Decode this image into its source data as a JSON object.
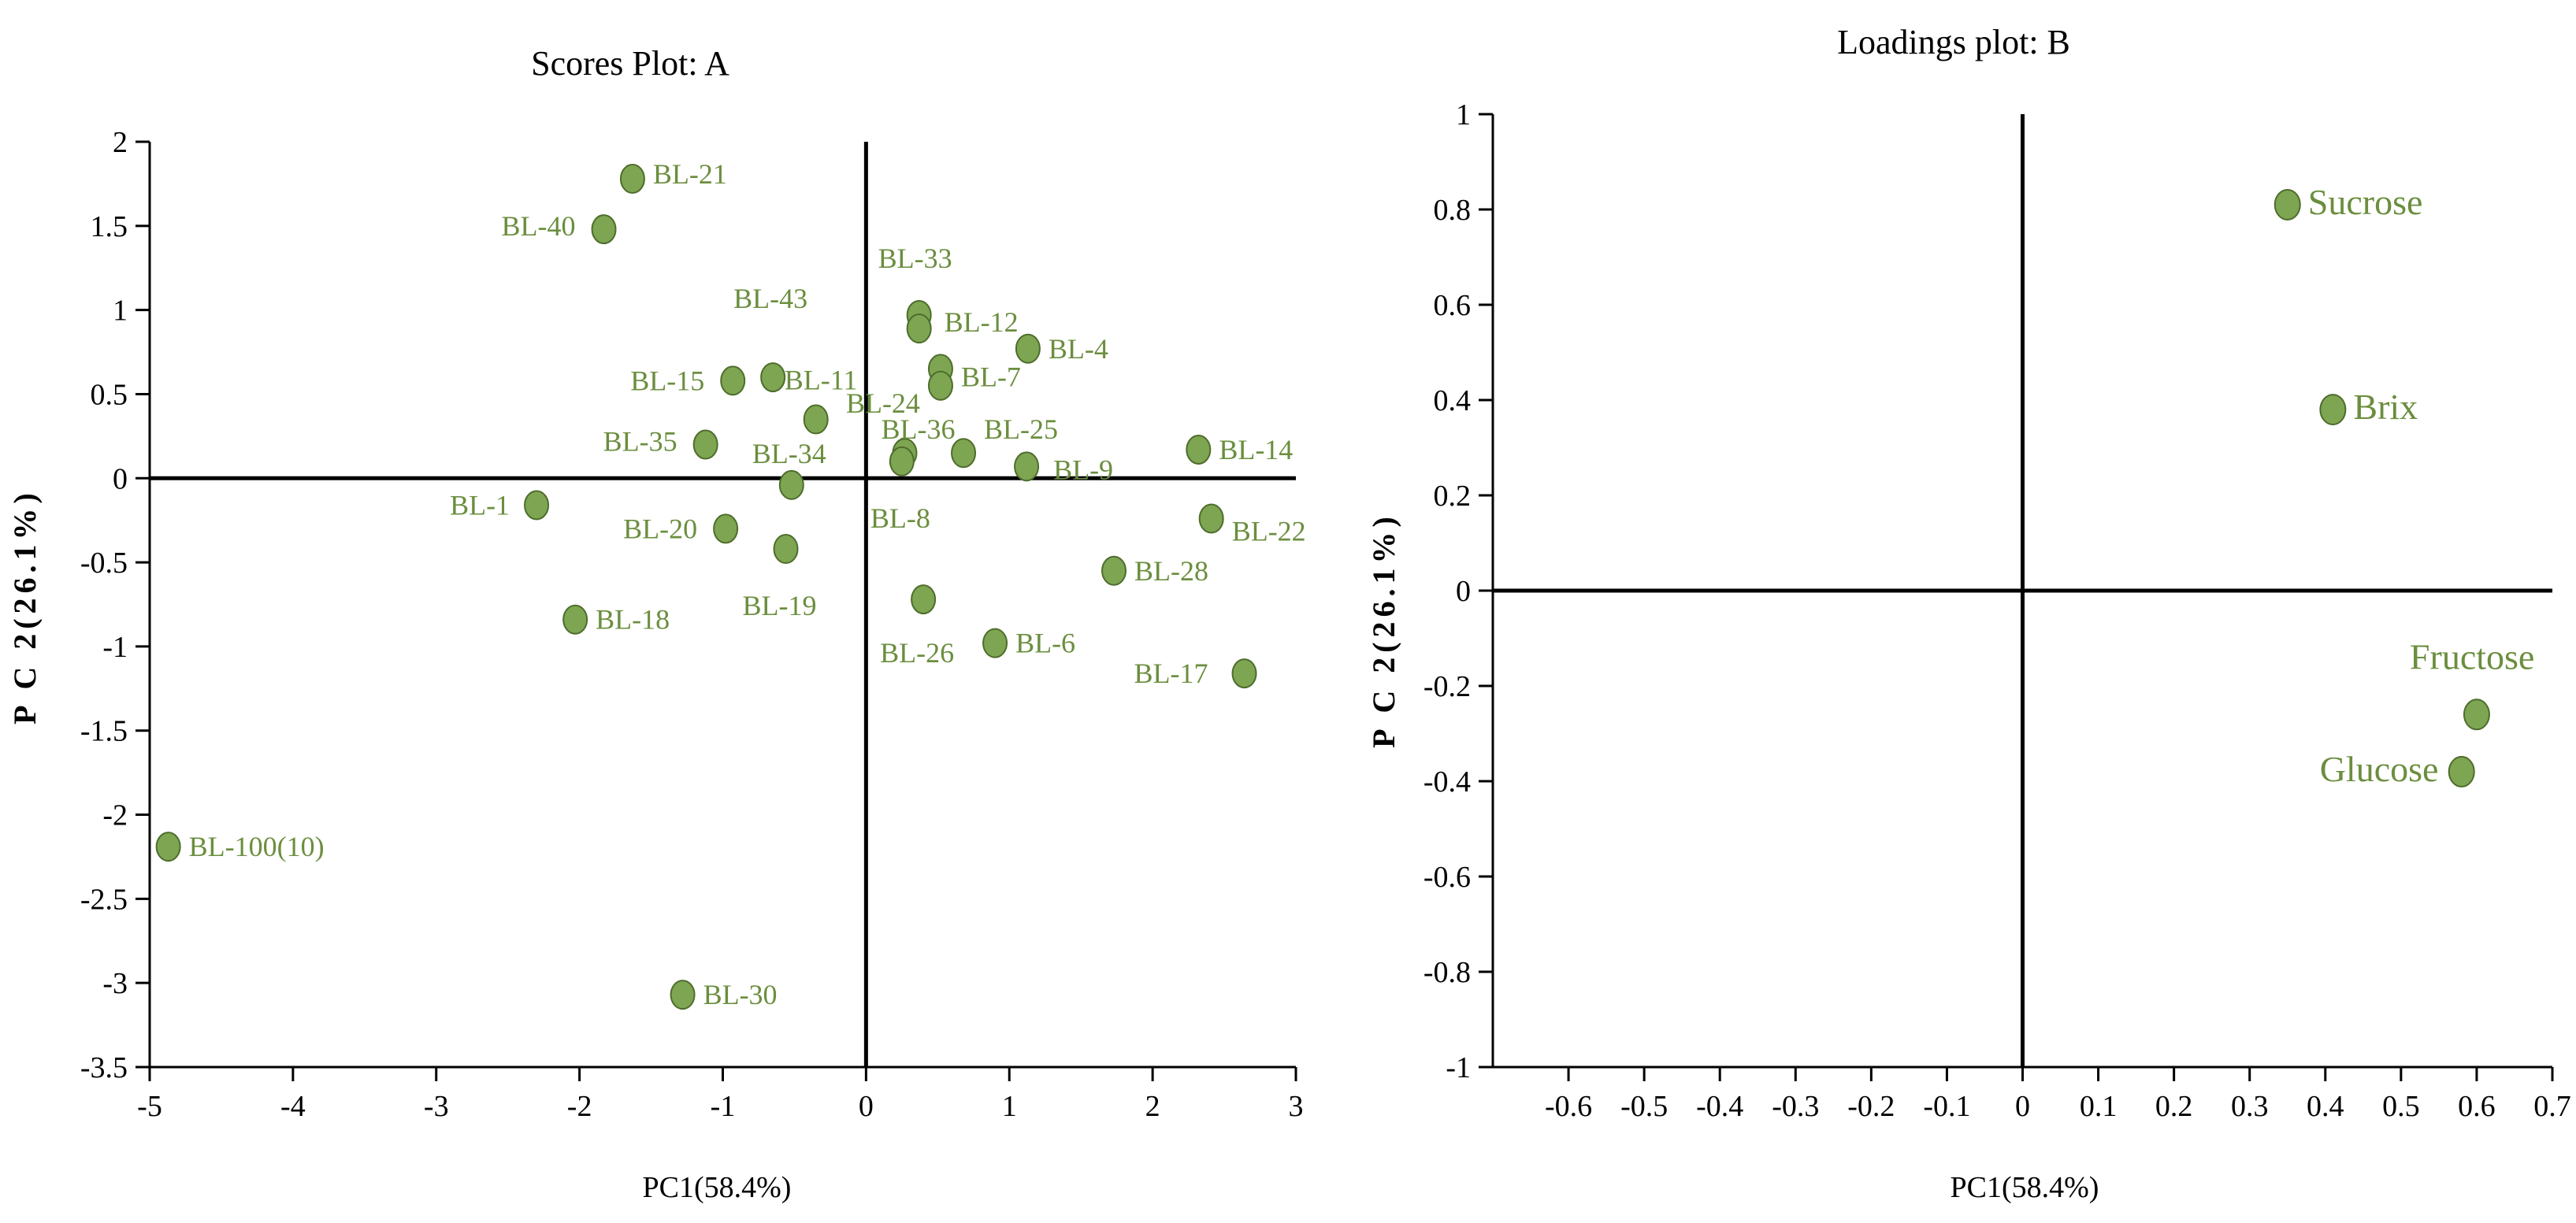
{
  "colors": {
    "point_fill": "#7ea552",
    "point_stroke": "#4e6d2c",
    "label": "#6b8e3e",
    "axis": "#000000"
  },
  "chart_data": [
    {
      "type": "scatter",
      "title": "Scores Plot: A",
      "xlabel": "PC1(58.4%)",
      "ylabel": "P C 2(26.1%)",
      "xlim": [
        -5,
        3
      ],
      "ylim": [
        -3.5,
        2
      ],
      "xticks": [
        -5,
        -4,
        -3,
        -2,
        -1,
        0,
        1,
        2,
        3
      ],
      "yticks": [
        2,
        1.5,
        1,
        0.5,
        0,
        -0.5,
        -1,
        -1.5,
        -2,
        -2.5,
        -3,
        -3.5
      ],
      "points": [
        {
          "label": "BL-21",
          "x": -1.63,
          "y": 1.78
        },
        {
          "label": "BL-40",
          "x": -1.83,
          "y": 1.48
        },
        {
          "label": "BL-43",
          "x": -0.65,
          "y": 0.6
        },
        {
          "label": "BL-15",
          "x": -0.93,
          "y": 0.58
        },
        {
          "label": "BL-11",
          "x": -0.35,
          "y": 0.35
        },
        {
          "label": "BL-35",
          "x": -1.12,
          "y": 0.2
        },
        {
          "label": "BL-34",
          "x": -0.52,
          "y": -0.04
        },
        {
          "label": "BL-1",
          "x": -2.3,
          "y": -0.16
        },
        {
          "label": "BL-20",
          "x": -0.98,
          "y": -0.3
        },
        {
          "label": "BL-19",
          "x": -0.56,
          "y": -0.42
        },
        {
          "label": "BL-18",
          "x": -2.03,
          "y": -0.84
        },
        {
          "label": "BL-100(10)",
          "x": -4.87,
          "y": -2.19
        },
        {
          "label": "BL-30",
          "x": -1.28,
          "y": -3.07
        },
        {
          "label": "BL-33",
          "x": 0.37,
          "y": 0.97
        },
        {
          "label": "BL-12",
          "x": 0.37,
          "y": 0.89
        },
        {
          "label": "BL-4",
          "x": 1.13,
          "y": 0.77
        },
        {
          "label": "BL-7",
          "x": 0.52,
          "y": 0.65
        },
        {
          "label": "BL-24",
          "x": 0.52,
          "y": 0.55
        },
        {
          "label": "BL-36",
          "x": 0.27,
          "y": 0.15
        },
        {
          "label": "BL-25",
          "x": 0.68,
          "y": 0.15
        },
        {
          "label": "BL-8",
          "x": 0.25,
          "y": 0.1
        },
        {
          "label": "BL-9",
          "x": 1.12,
          "y": 0.07
        },
        {
          "label": "BL-14",
          "x": 2.32,
          "y": 0.17
        },
        {
          "label": "BL-22",
          "x": 2.41,
          "y": -0.24
        },
        {
          "label": "BL-28",
          "x": 1.73,
          "y": -0.55
        },
        {
          "label": "BL-26",
          "x": 0.4,
          "y": -0.72
        },
        {
          "label": "BL-6",
          "x": 0.9,
          "y": -0.98
        },
        {
          "label": "BL-17",
          "x": 2.64,
          "y": -1.16
        }
      ]
    },
    {
      "type": "scatter",
      "title": "Loadings plot: B",
      "xlabel": "PC1(58.4%)",
      "ylabel": "P C 2(26.1%)",
      "xlim": [
        -0.7,
        0.7
      ],
      "ylim": [
        -1,
        1
      ],
      "xticks": [
        -0.6,
        -0.5,
        -0.4,
        -0.3,
        -0.2,
        -0.1,
        0,
        0.1,
        0.2,
        0.3,
        0.4,
        0.5,
        0.6,
        0.7
      ],
      "yticks": [
        1,
        0.8,
        0.6,
        0.4,
        0.2,
        0,
        -0.2,
        -0.4,
        -0.6,
        -0.8,
        -1
      ],
      "points": [
        {
          "label": "Sucrose",
          "x": 0.35,
          "y": 0.81
        },
        {
          "label": "Brix",
          "x": 0.41,
          "y": 0.38
        },
        {
          "label": "Fructose",
          "x": 0.6,
          "y": -0.26
        },
        {
          "label": "Glucose",
          "x": 0.58,
          "y": -0.38
        }
      ]
    }
  ]
}
